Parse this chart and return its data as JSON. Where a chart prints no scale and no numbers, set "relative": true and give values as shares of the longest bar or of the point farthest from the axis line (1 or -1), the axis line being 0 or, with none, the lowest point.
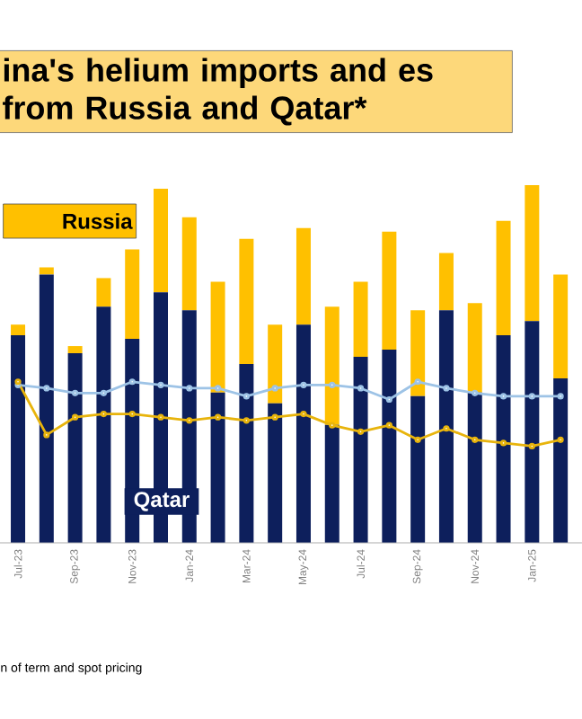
{
  "chart_data": [
    {
      "type": "bar",
      "title": "ina's helium imports and es from Russia and Qatar*",
      "annotations": [
        "n of term and spot pricing"
      ],
      "categories": [
        "Jul-23",
        null,
        "Sep-23",
        null,
        "Nov-23",
        null,
        "Jan-24",
        null,
        "Mar-24",
        null,
        "May-24",
        null,
        "Jul-24",
        null,
        "Sep-24",
        null,
        "Nov-24",
        null,
        "Jan-25",
        null
      ],
      "relative": true,
      "stacked": true,
      "series": [
        {
          "name": "Qatar",
          "color": "#0d1f5c",
          "values": [
            0.58,
            0.75,
            0.53,
            0.66,
            0.57,
            0.7,
            0.65,
            0.42,
            0.5,
            0.39,
            0.61,
            0.33,
            0.52,
            0.54,
            0.41,
            0.65,
            0.42,
            0.58,
            0.62,
            0.46
          ]
        },
        {
          "name": "Russia",
          "color": "#ffc000",
          "values": [
            0.03,
            0.02,
            0.02,
            0.08,
            0.25,
            0.29,
            0.26,
            0.31,
            0.35,
            0.22,
            0.27,
            0.33,
            0.21,
            0.33,
            0.24,
            0.16,
            0.25,
            0.32,
            0.38,
            0.29
          ]
        }
      ]
    },
    {
      "type": "line",
      "categories": [
        null,
        null,
        null,
        null,
        null,
        null,
        null,
        null,
        null,
        null,
        null,
        null,
        null,
        null,
        null,
        null,
        null,
        null,
        null,
        null
      ],
      "relative": true,
      "marker": "circle",
      "series": [
        {
          "color": "#9dc3e6",
          "values": [
            0.98,
            0.96,
            0.93,
            0.93,
            1.0,
            0.98,
            0.96,
            0.96,
            0.91,
            0.96,
            0.98,
            0.98,
            0.96,
            0.89,
            1.0,
            0.96,
            0.93,
            0.91,
            0.91,
            0.91
          ]
        },
        {
          "color": "#e8b40c",
          "values": [
            1.0,
            0.67,
            0.78,
            0.8,
            0.8,
            0.78,
            0.76,
            0.78,
            0.76,
            0.78,
            0.8,
            0.73,
            0.69,
            0.73,
            0.64,
            0.71,
            0.64,
            0.62,
            0.6,
            0.64
          ]
        }
      ]
    }
  ]
}
